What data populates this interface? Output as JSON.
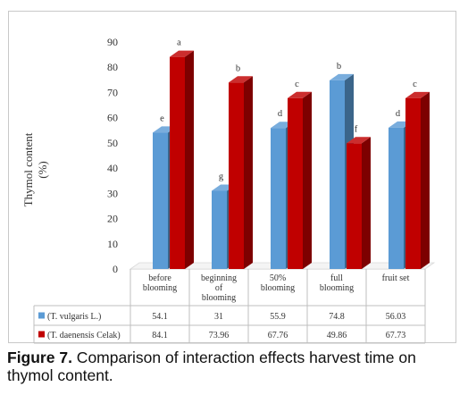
{
  "chart_data": {
    "type": "bar",
    "ylabel_line1": "Thymol content",
    "ylabel_line2": "(%)",
    "ylim": [
      0,
      90
    ],
    "yticks": [
      "0",
      "10",
      "20",
      "30",
      "40",
      "50",
      "60",
      "70",
      "80",
      "90"
    ],
    "categories": [
      [
        "before",
        "blooming"
      ],
      [
        "beginning",
        "of",
        "blooming"
      ],
      [
        "50%",
        "blooming"
      ],
      [
        "full",
        "blooming"
      ],
      [
        "fruit set"
      ]
    ],
    "series": [
      {
        "name": "(T. vulgaris  L.)",
        "color": "#5b9bd5",
        "values": [
          54.1,
          31,
          55.9,
          74.8,
          56.03
        ],
        "table_values": [
          "54.1",
          "31",
          "55.9",
          "74.8",
          "56.03"
        ],
        "letters": [
          "e",
          "g",
          "d",
          "b",
          "d"
        ]
      },
      {
        "name": "(T. daenensis  Celak)",
        "color": "#c00000",
        "values": [
          84.1,
          73.96,
          67.76,
          49.86,
          67.73
        ],
        "table_values": [
          "84.1",
          "73.96",
          "67.76",
          "49.86",
          "67.73"
        ],
        "letters": [
          "a",
          "b",
          "c",
          "f",
          "c"
        ]
      }
    ],
    "grid": false,
    "legend": "table"
  },
  "caption": {
    "label": "Figure 7.",
    "text": " Comparison of interaction effects harvest time on thymol content."
  }
}
